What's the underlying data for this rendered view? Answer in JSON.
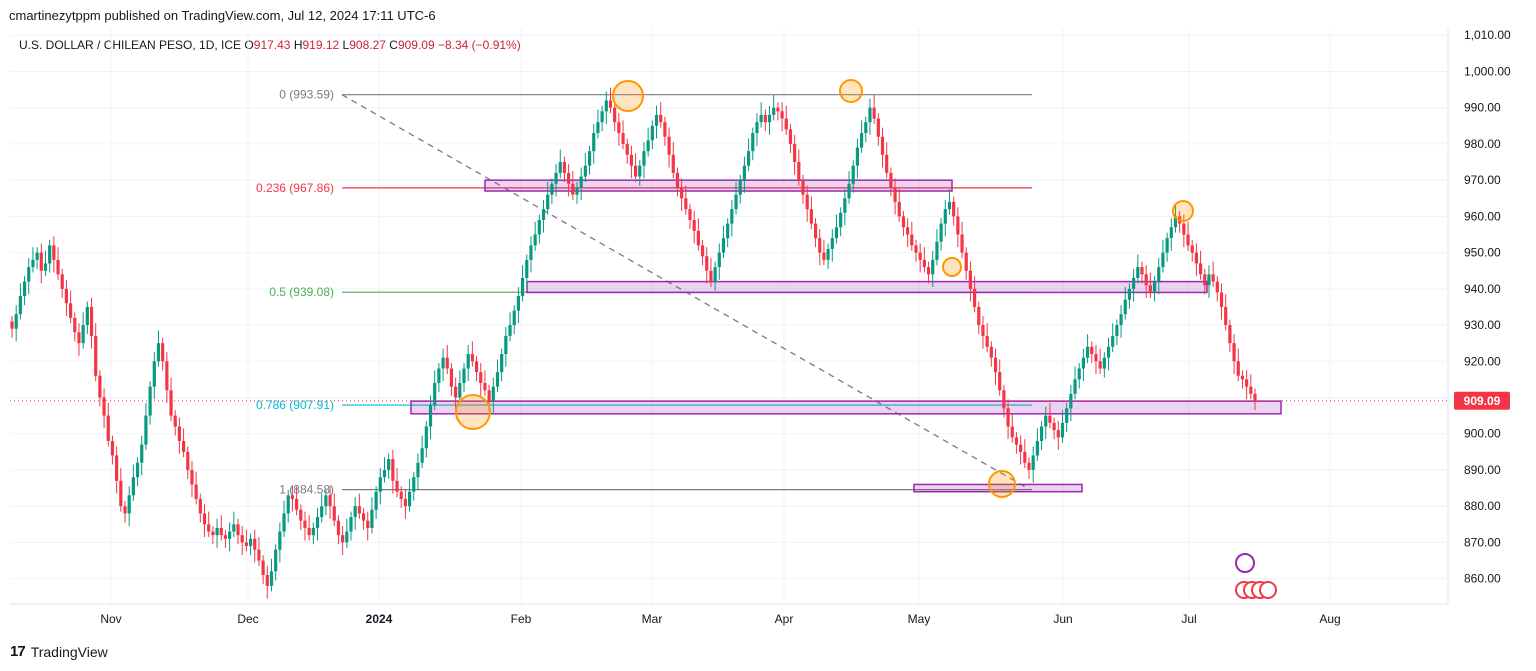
{
  "header": {
    "published": "cmartinezytppm published on TradingView.com, Jul 12, 2024 17:11 UTC-6"
  },
  "symbol": {
    "name": "U.S. DOLLAR / CHILEAN PESO, 1D, ICE",
    "o_label": "O",
    "o": "917.43",
    "h_label": "H",
    "h": "919.12",
    "l_label": "L",
    "l": "908.27",
    "c_label": "C",
    "c": "909.09",
    "change": "−8.34 (−0.91%)"
  },
  "footer": {
    "brand": "TradingView",
    "logo": "17"
  },
  "colors": {
    "up": "#089981",
    "down": "#f23645",
    "fib0": "#787b86",
    "fib236": "#f23645",
    "fib5": "#4caf50",
    "fib786": "#00bcd4",
    "fib1": "#787b86",
    "zone": "#9c27b0",
    "circle": "#ff9800"
  },
  "chart_data": {
    "type": "candlestick",
    "price_range": [
      853,
      1012
    ],
    "ylabels": [
      "1,010.00",
      "1,000.00",
      "990.00",
      "980.00",
      "970.00",
      "960.00",
      "950.00",
      "940.00",
      "930.00",
      "920.00",
      "910.00",
      "900.00",
      "890.00",
      "880.00",
      "870.00",
      "860.00"
    ],
    "yvalues": [
      1010,
      1000,
      990,
      980,
      970,
      960,
      950,
      940,
      930,
      920,
      910,
      900,
      890,
      880,
      870,
      860
    ],
    "xlabels": [
      "Nov",
      "Dec",
      "2024",
      "Feb",
      "Mar",
      "Apr",
      "May",
      "Jun",
      "Jul",
      "Aug"
    ],
    "last_price": "909.09",
    "fib_levels": [
      {
        "label": "0 (993.59)",
        "value": 993.59,
        "key": "fib0"
      },
      {
        "label": "0.236 (967.86)",
        "value": 967.86,
        "key": "fib236"
      },
      {
        "label": "0.5 (939.08)",
        "value": 939.08,
        "key": "fib5"
      },
      {
        "label": "0.786 (907.91)",
        "value": 907.91,
        "key": "fib786"
      },
      {
        "label": "1 (884.58)",
        "value": 884.58,
        "key": "fib1"
      }
    ],
    "zones": [
      {
        "top": 970,
        "bottom": 967
      },
      {
        "top": 942,
        "bottom": 939
      },
      {
        "top": 909,
        "bottom": 905.5
      },
      {
        "top": 886,
        "bottom": 884
      }
    ],
    "closes": [
      929,
      933,
      938,
      942,
      946,
      948,
      950,
      945,
      947,
      952,
      948,
      944,
      940,
      936,
      932,
      928,
      925,
      930,
      935,
      927,
      916,
      910,
      905,
      898,
      894,
      887,
      880,
      878,
      883,
      888,
      892,
      897,
      905,
      913,
      920,
      925,
      920,
      912,
      905,
      902,
      898,
      895,
      890,
      886,
      882,
      878,
      875,
      873,
      872,
      874,
      872,
      871,
      873,
      875,
      872,
      870,
      869,
      871,
      868,
      865,
      861,
      858,
      862,
      868,
      873,
      878,
      883,
      882,
      879,
      876,
      874,
      872,
      874,
      877,
      880,
      883,
      880,
      876,
      872,
      870,
      873,
      877,
      880,
      878,
      876,
      874,
      879,
      884,
      888,
      890,
      893,
      887,
      884,
      882,
      880,
      884,
      888,
      892,
      896,
      902,
      908,
      914,
      918,
      921,
      918,
      913,
      910,
      914,
      918,
      922,
      920,
      917,
      914,
      912,
      909,
      913,
      917,
      922,
      927,
      930,
      934,
      938,
      943,
      948,
      952,
      955,
      959,
      962,
      966,
      969,
      972,
      975,
      972,
      969,
      966,
      968,
      971,
      974,
      978,
      983,
      986,
      989,
      992,
      990,
      986,
      983,
      980,
      977,
      974,
      971,
      974,
      978,
      981,
      985,
      988,
      986,
      982,
      977,
      972,
      968,
      965,
      962,
      959,
      956,
      952,
      949,
      945,
      942,
      946,
      950,
      954,
      958,
      962,
      966,
      970,
      974,
      978,
      983,
      986,
      988,
      986,
      988,
      990,
      989,
      987,
      984,
      980,
      975,
      970,
      966,
      962,
      958,
      954,
      950,
      948,
      951,
      954,
      957,
      961,
      965,
      969,
      974,
      979,
      983,
      986,
      990,
      987,
      982,
      977,
      972,
      968,
      964,
      960,
      957,
      955,
      952,
      950,
      948,
      946,
      944,
      948,
      953,
      958,
      962,
      964,
      960,
      955,
      950,
      945,
      940,
      935,
      930,
      927,
      924,
      921,
      917,
      912,
      907,
      902,
      899,
      897,
      895,
      892,
      890,
      894,
      898,
      902,
      905,
      903,
      901,
      899,
      903,
      907,
      911,
      915,
      918,
      921,
      924,
      922,
      920,
      918,
      921,
      924,
      927,
      930,
      933,
      937,
      940,
      943,
      946,
      944,
      941,
      939,
      942,
      946,
      950,
      954,
      957,
      960,
      958,
      955,
      952,
      950,
      947,
      944,
      941,
      944,
      942,
      939,
      935,
      930,
      925,
      920,
      916,
      915,
      913,
      911,
      909.09
    ]
  }
}
